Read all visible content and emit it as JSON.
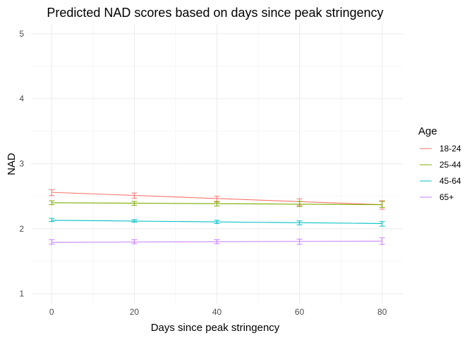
{
  "chart_data": {
    "type": "line",
    "title": "Predicted NAD scores based on days since peak stringency",
    "xlabel": "Days since peak stringency",
    "ylabel": "NAD",
    "xlim": [
      -5,
      85
    ],
    "ylim": [
      0.85,
      5.15
    ],
    "x_ticks": [
      0,
      20,
      40,
      60,
      80
    ],
    "y_ticks": [
      1,
      2,
      3,
      4,
      5
    ],
    "grid": true,
    "legend": {
      "title": "Age",
      "position": "right"
    },
    "series": [
      {
        "name": "18-24",
        "color": "#F8766D",
        "x": [
          0,
          80
        ],
        "y": [
          2.56,
          2.37
        ],
        "errorbars": [
          {
            "x": 0,
            "y": 2.56,
            "low": 2.51,
            "high": 2.6
          },
          {
            "x": 20,
            "y": 2.51,
            "low": 2.47,
            "high": 2.55
          },
          {
            "x": 40,
            "y": 2.46,
            "low": 2.41,
            "high": 2.5
          },
          {
            "x": 60,
            "y": 2.41,
            "low": 2.36,
            "high": 2.46
          },
          {
            "x": 80,
            "y": 2.37,
            "low": 2.3,
            "high": 2.43
          }
        ]
      },
      {
        "name": "25-44",
        "color": "#7CAE00",
        "x": [
          0,
          80
        ],
        "y": [
          2.4,
          2.37
        ],
        "errorbars": [
          {
            "x": 0,
            "y": 2.4,
            "low": 2.37,
            "high": 2.43
          },
          {
            "x": 20,
            "y": 2.39,
            "low": 2.36,
            "high": 2.42
          },
          {
            "x": 40,
            "y": 2.39,
            "low": 2.35,
            "high": 2.42
          },
          {
            "x": 60,
            "y": 2.38,
            "low": 2.34,
            "high": 2.42
          },
          {
            "x": 80,
            "y": 2.37,
            "low": 2.33,
            "high": 2.42
          }
        ]
      },
      {
        "name": "45-64",
        "color": "#00BFC4",
        "x": [
          0,
          80
        ],
        "y": [
          2.13,
          2.08
        ],
        "errorbars": [
          {
            "x": 0,
            "y": 2.13,
            "low": 2.11,
            "high": 2.16
          },
          {
            "x": 20,
            "y": 2.12,
            "low": 2.1,
            "high": 2.14
          },
          {
            "x": 40,
            "y": 2.1,
            "low": 2.08,
            "high": 2.13
          },
          {
            "x": 60,
            "y": 2.09,
            "low": 2.06,
            "high": 2.12
          },
          {
            "x": 80,
            "y": 2.08,
            "low": 2.04,
            "high": 2.11
          }
        ]
      },
      {
        "name": "65+",
        "color": "#C77CFF",
        "x": [
          0,
          80
        ],
        "y": [
          1.79,
          1.81
        ],
        "errorbars": [
          {
            "x": 0,
            "y": 1.79,
            "low": 1.76,
            "high": 1.83
          },
          {
            "x": 20,
            "y": 1.8,
            "low": 1.77,
            "high": 1.83
          },
          {
            "x": 40,
            "y": 1.8,
            "low": 1.77,
            "high": 1.83
          },
          {
            "x": 60,
            "y": 1.8,
            "low": 1.76,
            "high": 1.84
          },
          {
            "x": 80,
            "y": 1.81,
            "low": 1.76,
            "high": 1.86
          }
        ]
      }
    ]
  }
}
